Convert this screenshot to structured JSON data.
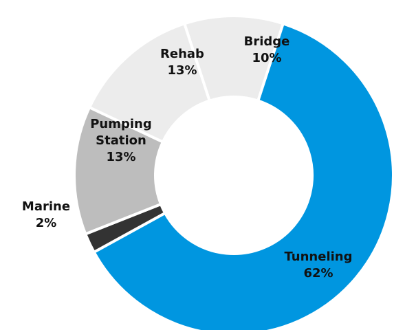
{
  "chart_data": {
    "type": "pie",
    "variant": "donut",
    "title": "",
    "legend": "none",
    "slices": [
      {
        "label": "Tunneling",
        "value": 62,
        "display": "62%",
        "color": "#0096E0",
        "label_lines": [
          "Tunneling",
          "62%"
        ]
      },
      {
        "label": "Marine",
        "value": 2,
        "display": "2%",
        "color": "#333333",
        "label_lines": [
          "Marine",
          "2%"
        ]
      },
      {
        "label": "Pumping Station",
        "value": 13,
        "display": "13%",
        "color": "#BDBDBD",
        "label_lines": [
          "Pumping",
          "Station",
          "13%"
        ]
      },
      {
        "label": "Rehab",
        "value": 13,
        "display": "13%",
        "color": "#ECECEC",
        "label_lines": [
          "Rehab",
          "13%"
        ]
      },
      {
        "label": "Bridge",
        "value": 10,
        "display": "10%",
        "color": "#ECECEC",
        "label_lines": [
          "Bridge",
          "10%"
        ]
      }
    ]
  }
}
